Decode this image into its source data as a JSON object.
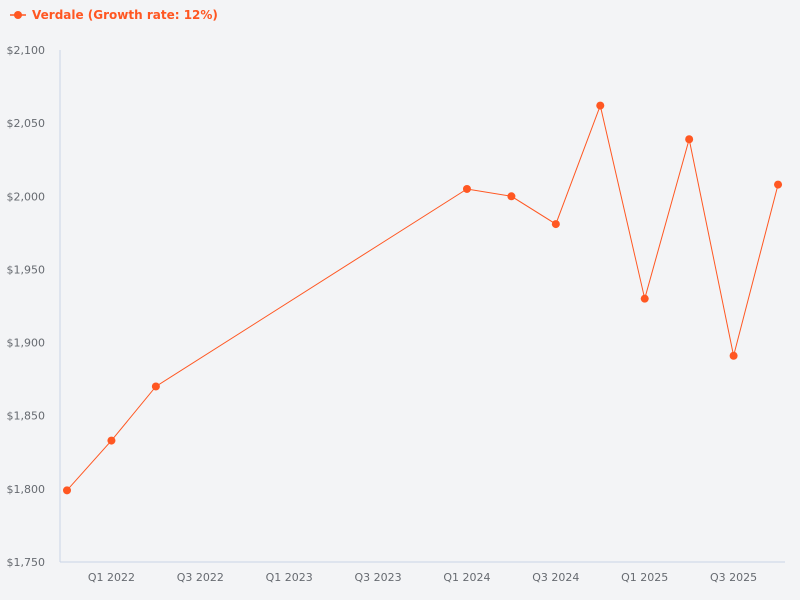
{
  "legend": {
    "label": "Verdale (Growth rate: 12%)",
    "color": "#ff5722"
  },
  "chart_data": {
    "type": "line",
    "title": "",
    "xlabel": "",
    "ylabel": "",
    "ylim": [
      1750,
      2100
    ],
    "y_ticks": [
      "$1,750",
      "$1,800",
      "$1,850",
      "$1,900",
      "$1,950",
      "$2,000",
      "$2,050",
      "$2,100"
    ],
    "y_tick_values": [
      1750,
      1800,
      1850,
      1900,
      1950,
      2000,
      2050,
      2100
    ],
    "x_ticks": [
      "Q1 2022",
      "Q3 2022",
      "Q1 2023",
      "Q3 2023",
      "Q1 2024",
      "Q3 2024",
      "Q1 2025",
      "Q3 2025"
    ],
    "x_tick_index": [
      1,
      3,
      5,
      7,
      9,
      11,
      13,
      15
    ],
    "grid": false,
    "legend_position": "top-left",
    "series": [
      {
        "name": "Verdale (Growth rate: 12%)",
        "color": "#ff5722",
        "x": [
          "Q4 2021",
          "Q1 2022",
          "Q2 2022",
          "Q1 2024",
          "Q2 2024",
          "Q3 2024",
          "Q4 2024",
          "Q1 2025",
          "Q2 2025",
          "Q3 2025",
          "Q4 2025"
        ],
        "x_index": [
          0,
          1,
          2,
          9,
          10,
          11,
          12,
          13,
          14,
          15,
          16
        ],
        "values": [
          1799,
          1833,
          1870,
          2005,
          2000,
          1981,
          2062,
          1930,
          2039,
          1891,
          2008
        ]
      }
    ]
  }
}
